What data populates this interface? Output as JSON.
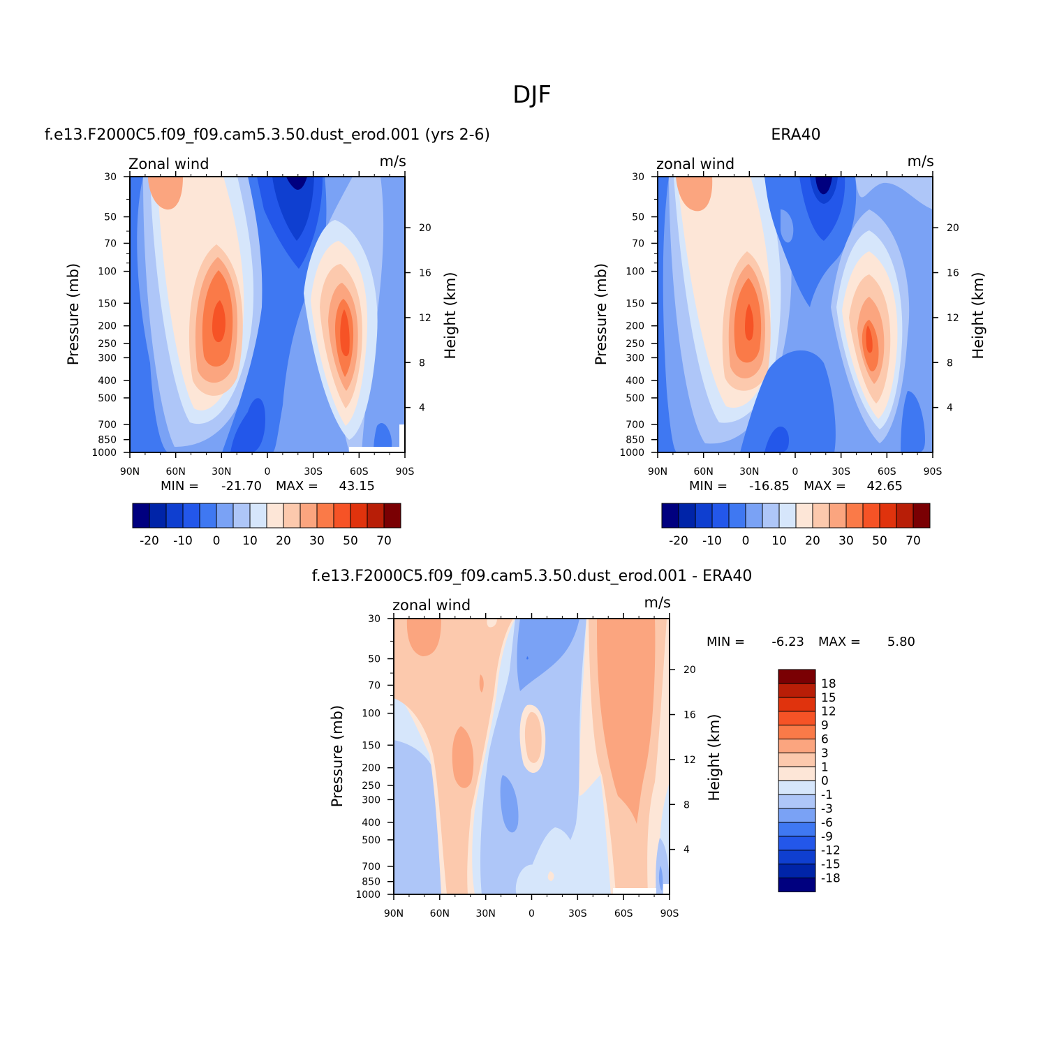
{
  "figure": {
    "main_title": "DJF",
    "diff_minmax": {
      "min_label": "MIN =",
      "min_value": "-6.23",
      "max_label": "MAX =",
      "max_value": "5.80"
    }
  },
  "chart_data": [
    {
      "type": "contour",
      "title": "f.e13.F2000C5.f09_f09.cam5.3.50.dust_erod.001 (yrs 2-6)",
      "variable": "Zonal wind",
      "units": "m/s",
      "ylabel": "Pressure (mb)",
      "ylabel_right": "Height (km)",
      "x_ticks": [
        "90N",
        "60N",
        "30N",
        "0",
        "30S",
        "60S",
        "90S"
      ],
      "y_ticks": [
        "30",
        "50",
        "70",
        "100",
        "150",
        "200",
        "250",
        "300",
        "400",
        "500",
        "700",
        "850",
        "1000"
      ],
      "y_right_ticks": [
        "20",
        "16",
        "12",
        "8",
        "4"
      ],
      "ylim": [
        1000,
        30
      ],
      "y_scale": "log",
      "min_label": "MIN =",
      "min": "-21.70",
      "max_label": "MAX =",
      "max": "43.15",
      "colorbar_labels": [
        "-20",
        "-10",
        "0",
        "10",
        "20",
        "30",
        "50",
        "70"
      ],
      "features": [
        {
          "name": "northern subtropical jet",
          "lat": 27,
          "p": 200,
          "u": 43.15
        },
        {
          "name": "southern subtropical jet",
          "lat": -48,
          "p": 250,
          "u": 35
        },
        {
          "name": "tropical easterlies",
          "lat": -15,
          "p": 30,
          "u": -21.7
        }
      ]
    },
    {
      "type": "contour",
      "title": "ERA40",
      "variable": "zonal wind",
      "units": "m/s",
      "ylabel": "Pressure (mb)",
      "ylabel_right": "Height (km)",
      "x_ticks": [
        "90N",
        "60N",
        "30N",
        "0",
        "30S",
        "60S",
        "90S"
      ],
      "y_ticks": [
        "30",
        "50",
        "70",
        "100",
        "150",
        "200",
        "250",
        "300",
        "400",
        "500",
        "700",
        "850",
        "1000"
      ],
      "y_right_ticks": [
        "20",
        "16",
        "12",
        "8",
        "4"
      ],
      "ylim": [
        1000,
        30
      ],
      "y_scale": "log",
      "min_label": "MIN =",
      "min": "-16.85",
      "max_label": "MAX =",
      "max": "42.65",
      "colorbar_labels": [
        "-20",
        "-10",
        "0",
        "10",
        "20",
        "30",
        "50",
        "70"
      ],
      "features": [
        {
          "name": "northern subtropical jet",
          "lat": 31,
          "p": 200,
          "u": 42.65
        },
        {
          "name": "southern subtropical jet",
          "lat": -48,
          "p": 250,
          "u": 38
        },
        {
          "name": "tropical easterlies",
          "lat": -15,
          "p": 30,
          "u": -16.85
        }
      ]
    },
    {
      "type": "contour",
      "title": "f.e13.F2000C5.f09_f09.cam5.3.50.dust_erod.001 - ERA40",
      "variable": "zonal wind",
      "units": "m/s",
      "ylabel": "Pressure (mb)",
      "ylabel_right": "Height (km)",
      "x_ticks": [
        "90N",
        "60N",
        "30N",
        "0",
        "30S",
        "60S",
        "90S"
      ],
      "y_ticks": [
        "30",
        "50",
        "70",
        "100",
        "150",
        "200",
        "250",
        "300",
        "400",
        "500",
        "700",
        "850",
        "1000"
      ],
      "y_right_ticks": [
        "20",
        "16",
        "12",
        "8",
        "4"
      ],
      "ylim": [
        1000,
        30
      ],
      "y_scale": "log",
      "colorbar_labels": [
        "18",
        "15",
        "12",
        "9",
        "6",
        "3",
        "1",
        "0",
        "-1",
        "-3",
        "-6",
        "-9",
        "-12",
        "-15",
        "-18"
      ]
    }
  ],
  "colors": {
    "colorbar16": [
      "#00007f",
      "#0024a8",
      "#0f3fd0",
      "#2357ea",
      "#3f78f2",
      "#7aa2f5",
      "#aec6f8",
      "#d6e6fb",
      "#fde6d7",
      "#fcc9ad",
      "#fba57f",
      "#fa7a48",
      "#f65326",
      "#e0330d",
      "#b81e07",
      "#7a0003"
    ]
  }
}
